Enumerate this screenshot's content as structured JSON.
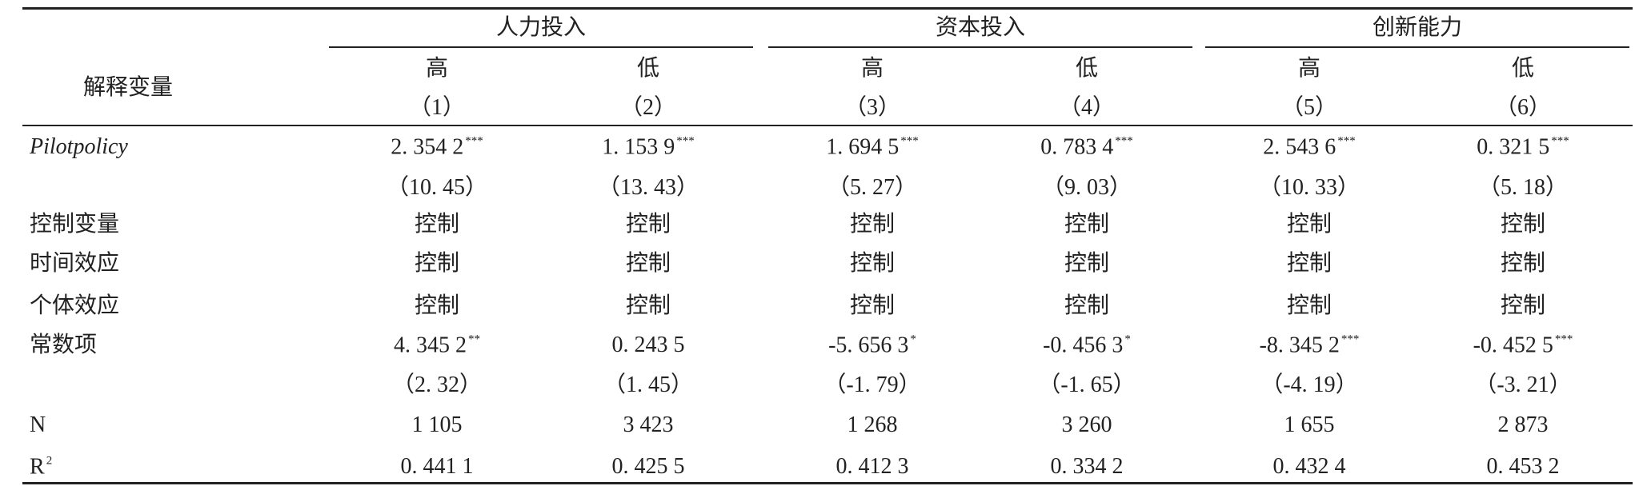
{
  "header": {
    "row_label": "解释变量",
    "groups": [
      "人力投入",
      "资本投入",
      "创新能力"
    ],
    "levels": [
      "高",
      "低",
      "高",
      "低",
      "高",
      "低"
    ],
    "columns": [
      "（1）",
      "（2）",
      "（3）",
      "（4）",
      "（5）",
      "（6）"
    ]
  },
  "rows": [
    {
      "label": "Pilotpolicy",
      "italic": true,
      "cells": [
        {
          "text": "2. 354 2",
          "sup": "***"
        },
        {
          "text": "1. 153 9",
          "sup": "***"
        },
        {
          "text": "1. 694 5",
          "sup": "***"
        },
        {
          "text": "0. 783 4",
          "sup": "***"
        },
        {
          "text": "2. 543 6",
          "sup": "***"
        },
        {
          "text": "0. 321 5",
          "sup": "***"
        }
      ]
    },
    {
      "cells": [
        {
          "text": "（10. 45）"
        },
        {
          "text": "（13. 43）"
        },
        {
          "text": "（5. 27）"
        },
        {
          "text": "（9. 03）"
        },
        {
          "text": "（10. 33）"
        },
        {
          "text": "（5. 18）"
        }
      ]
    },
    {
      "label": "控制变量",
      "cells": [
        {
          "text": "控制"
        },
        {
          "text": "控制"
        },
        {
          "text": "控制"
        },
        {
          "text": "控制"
        },
        {
          "text": "控制"
        },
        {
          "text": "控制"
        }
      ]
    },
    {
      "label": "时间效应",
      "cells": [
        {
          "text": "控制"
        },
        {
          "text": "控制"
        },
        {
          "text": "控制"
        },
        {
          "text": "控制"
        },
        {
          "text": "控制"
        },
        {
          "text": "控制"
        }
      ]
    },
    {
      "label": "个体效应",
      "cells": [
        {
          "text": "控制"
        },
        {
          "text": "控制"
        },
        {
          "text": "控制"
        },
        {
          "text": "控制"
        },
        {
          "text": "控制"
        },
        {
          "text": "控制"
        }
      ]
    },
    {
      "label": "常数项",
      "cells": [
        {
          "text": "4. 345 2",
          "sup": "**"
        },
        {
          "text": "0. 243 5"
        },
        {
          "text": "-5. 656 3",
          "sup": "*"
        },
        {
          "text": "-0. 456 3",
          "sup": "*"
        },
        {
          "text": "-8. 345 2",
          "sup": "***"
        },
        {
          "text": "-0. 452 5",
          "sup": "***"
        }
      ]
    },
    {
      "cells": [
        {
          "text": "（2. 32）"
        },
        {
          "text": "（1. 45）"
        },
        {
          "text": "（-1. 79）"
        },
        {
          "text": "（-1. 65）"
        },
        {
          "text": "（-4. 19）"
        },
        {
          "text": "（-3. 21）"
        }
      ]
    },
    {
      "label": "N",
      "cells": [
        {
          "text": "1 105"
        },
        {
          "text": "3 423"
        },
        {
          "text": "1 268"
        },
        {
          "text": "3 260"
        },
        {
          "text": "1 655"
        },
        {
          "text": "2 873"
        }
      ]
    },
    {
      "label": "R",
      "label_sup": "2",
      "cells": [
        {
          "text": "0. 441 1"
        },
        {
          "text": "0. 425 5"
        },
        {
          "text": "0. 412 3"
        },
        {
          "text": "0. 334 2"
        },
        {
          "text": "0. 432 4"
        },
        {
          "text": "0. 453 2"
        }
      ]
    }
  ]
}
